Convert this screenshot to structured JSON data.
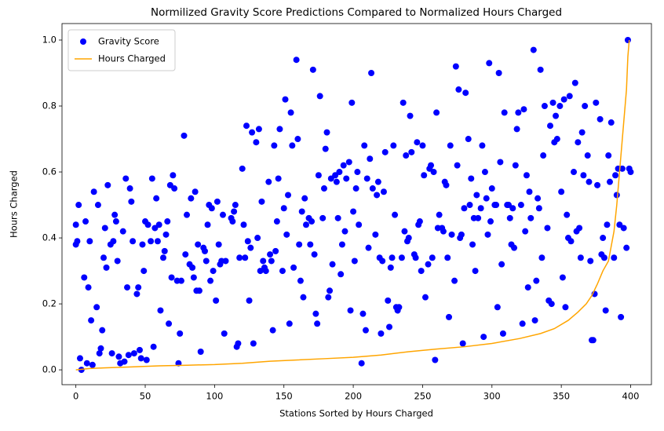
{
  "chart_data": {
    "type": "scatter",
    "title": "Normilized Gravity Score Predictions Compared to Normalized Hours Charged",
    "x_label": "Stations Sorted by Hours Charged",
    "y_label": "Hours Charged",
    "xlim": [
      -10,
      415
    ],
    "ylim": [
      -0.045,
      1.05
    ],
    "xticks": [
      0,
      50,
      100,
      150,
      200,
      250,
      300,
      350,
      400
    ],
    "yticks": [
      {
        "value": 0,
        "label": "0.0"
      },
      0.2,
      0.4,
      0.6,
      0.8,
      {
        "value": 1,
        "label": "1.0"
      }
    ],
    "legend": "upper left",
    "series": [
      {
        "name": "Gravity Score",
        "type": "scatter",
        "color": "#0000ff",
        "x": [
          0,
          0,
          1,
          2,
          3,
          4,
          6,
          7,
          8,
          9,
          10,
          11,
          12,
          13,
          15,
          16,
          17,
          18,
          19,
          20,
          21,
          22,
          23,
          25,
          26,
          27,
          28,
          29,
          30,
          31,
          32,
          34,
          35,
          36,
          37,
          38,
          39,
          40,
          41,
          42,
          44,
          45,
          46,
          47,
          48,
          49,
          50,
          51,
          52,
          54,
          55,
          56,
          57,
          58,
          59,
          60,
          61,
          63,
          64,
          65,
          66,
          67,
          68,
          69,
          70,
          71,
          73,
          74,
          75,
          76,
          78,
          79,
          80,
          82,
          83,
          84,
          85,
          86,
          87,
          88,
          89,
          90,
          92,
          93,
          94,
          95,
          96,
          97,
          98,
          99,
          101,
          102,
          103,
          104,
          105,
          106,
          107,
          108,
          112,
          113,
          114,
          115,
          116,
          117,
          118,
          120,
          121,
          122,
          123,
          124,
          125,
          126,
          127,
          128,
          130,
          131,
          132,
          133,
          134,
          135,
          136,
          137,
          139,
          140,
          141,
          142,
          143,
          144,
          145,
          146,
          147,
          149,
          150,
          151,
          152,
          153,
          154,
          155,
          156,
          157,
          159,
          160,
          161,
          162,
          163,
          164,
          165,
          166,
          168,
          169,
          170,
          171,
          172,
          173,
          174,
          175,
          176,
          178,
          179,
          180,
          181,
          182,
          183,
          184,
          185,
          187,
          188,
          189,
          190,
          191,
          192,
          193,
          194,
          195,
          197,
          198,
          199,
          200,
          201,
          202,
          203,
          204,
          206,
          207,
          208,
          209,
          210,
          211,
          212,
          213,
          214,
          216,
          217,
          218,
          219,
          220,
          221,
          222,
          223,
          225,
          226,
          227,
          228,
          229,
          230,
          231,
          232,
          233,
          235,
          236,
          237,
          238,
          239,
          240,
          241,
          242,
          244,
          245,
          246,
          247,
          248,
          249,
          250,
          251,
          252,
          254,
          255,
          256,
          257,
          258,
          259,
          260,
          261,
          262,
          264,
          265,
          266,
          267,
          268,
          269,
          270,
          271,
          273,
          274,
          275,
          276,
          277,
          278,
          279,
          280,
          281,
          283,
          284,
          285,
          286,
          287,
          288,
          289,
          290,
          292,
          293,
          294,
          295,
          296,
          297,
          298,
          299,
          300,
          302,
          303,
          304,
          305,
          306,
          307,
          308,
          309,
          311,
          312,
          313,
          314,
          315,
          316,
          317,
          318,
          319,
          321,
          322,
          323,
          324,
          325,
          326,
          327,
          328,
          330,
          331,
          332,
          333,
          334,
          335,
          336,
          337,
          338,
          340,
          341,
          342,
          343,
          344,
          345,
          346,
          347,
          349,
          350,
          351,
          352,
          353,
          354,
          355,
          356,
          357,
          359,
          360,
          361,
          362,
          363,
          364,
          365,
          366,
          367,
          369,
          370,
          371,
          372,
          373,
          374,
          375,
          376,
          378,
          379,
          380,
          381,
          382,
          383,
          384,
          385,
          386,
          388,
          389,
          390,
          391,
          392,
          393,
          394,
          395,
          397,
          398,
          399,
          400
        ],
        "values": [
          0.44,
          0.38,
          0.39,
          0.5,
          0.035,
          0.0,
          0.28,
          0.45,
          0.02,
          0.25,
          0.39,
          0.15,
          0.015,
          0.54,
          0.19,
          0.5,
          0.05,
          0.065,
          0.12,
          0.34,
          0.43,
          0.31,
          0.56,
          0.38,
          0.05,
          0.39,
          0.47,
          0.45,
          0.33,
          0.04,
          0.02,
          0.42,
          0.025,
          0.58,
          0.25,
          0.045,
          0.55,
          0.51,
          0.39,
          0.05,
          0.23,
          0.25,
          0.06,
          0.035,
          0.38,
          0.3,
          0.45,
          0.03,
          0.44,
          0.39,
          0.58,
          0.07,
          0.43,
          0.52,
          0.39,
          0.44,
          0.18,
          0.34,
          0.36,
          0.41,
          0.45,
          0.14,
          0.56,
          0.28,
          0.59,
          0.55,
          0.27,
          0.02,
          0.11,
          0.27,
          0.71,
          0.35,
          0.47,
          0.32,
          0.52,
          0.31,
          0.28,
          0.54,
          0.24,
          0.38,
          0.24,
          0.055,
          0.37,
          0.36,
          0.33,
          0.44,
          0.5,
          0.27,
          0.49,
          0.3,
          0.21,
          0.51,
          0.38,
          0.32,
          0.33,
          0.47,
          0.11,
          0.33,
          0.46,
          0.45,
          0.48,
          0.5,
          0.07,
          0.08,
          0.34,
          0.61,
          0.44,
          0.34,
          0.74,
          0.39,
          0.21,
          0.37,
          0.72,
          0.08,
          0.69,
          0.4,
          0.73,
          0.3,
          0.51,
          0.33,
          0.31,
          0.3,
          0.57,
          0.35,
          0.33,
          0.12,
          0.68,
          0.36,
          0.45,
          0.58,
          0.73,
          0.3,
          0.49,
          0.82,
          0.41,
          0.53,
          0.14,
          0.78,
          0.68,
          0.31,
          0.94,
          0.7,
          0.38,
          0.27,
          0.48,
          0.22,
          0.52,
          0.44,
          0.46,
          0.38,
          0.45,
          0.91,
          0.35,
          0.17,
          0.14,
          0.59,
          0.83,
          0.46,
          0.55,
          0.67,
          0.72,
          0.22,
          0.24,
          0.58,
          0.32,
          0.59,
          0.57,
          0.46,
          0.6,
          0.29,
          0.38,
          0.62,
          0.42,
          0.58,
          0.63,
          0.18,
          0.81,
          0.48,
          0.33,
          0.55,
          0.6,
          0.44,
          0.02,
          0.17,
          0.68,
          0.12,
          0.58,
          0.37,
          0.64,
          0.9,
          0.55,
          0.41,
          0.53,
          0.57,
          0.34,
          0.11,
          0.33,
          0.54,
          0.66,
          0.21,
          0.13,
          0.31,
          0.34,
          0.68,
          0.47,
          0.19,
          0.18,
          0.19,
          0.34,
          0.81,
          0.42,
          0.65,
          0.39,
          0.4,
          0.77,
          0.66,
          0.35,
          0.34,
          0.69,
          0.44,
          0.45,
          0.3,
          0.68,
          0.59,
          0.22,
          0.32,
          0.61,
          0.62,
          0.34,
          0.6,
          0.03,
          0.78,
          0.43,
          0.47,
          0.43,
          0.42,
          0.57,
          0.56,
          0.34,
          0.16,
          0.68,
          0.41,
          0.27,
          0.92,
          0.62,
          0.85,
          0.4,
          0.41,
          0.08,
          0.49,
          0.84,
          0.7,
          0.5,
          0.58,
          0.38,
          0.46,
          0.3,
          0.53,
          0.46,
          0.49,
          0.68,
          0.1,
          0.6,
          0.52,
          0.41,
          0.93,
          0.45,
          0.55,
          0.5,
          0.5,
          0.19,
          0.9,
          0.63,
          0.32,
          0.11,
          0.78,
          0.5,
          0.5,
          0.46,
          0.38,
          0.49,
          0.37,
          0.62,
          0.73,
          0.78,
          0.5,
          0.14,
          0.79,
          0.42,
          0.59,
          0.25,
          0.54,
          0.46,
          0.97,
          0.15,
          0.27,
          0.52,
          0.49,
          0.91,
          0.34,
          0.65,
          0.8,
          0.43,
          0.21,
          0.74,
          0.2,
          0.81,
          0.69,
          0.77,
          0.7,
          0.8,
          0.54,
          0.28,
          0.82,
          0.19,
          0.47,
          0.4,
          0.83,
          0.39,
          0.6,
          0.87,
          0.42,
          0.69,
          0.43,
          0.34,
          0.72,
          0.59,
          0.8,
          0.65,
          0.57,
          0.33,
          0.09,
          0.09,
          0.23,
          0.81,
          0.56,
          0.76,
          0.35,
          0.4,
          0.34,
          0.18,
          0.44,
          0.65,
          0.57,
          0.75,
          0.34,
          0.59,
          0.53,
          0.61,
          0.44,
          0.16,
          0.61,
          0.43,
          0.37,
          1.0,
          0.61,
          0.6
        ]
      },
      {
        "name": "Hours Charged",
        "type": "line",
        "color": "#ffa500",
        "x": [
          0,
          10,
          20,
          40,
          60,
          80,
          100,
          120,
          140,
          160,
          180,
          200,
          220,
          240,
          260,
          280,
          300,
          320,
          335,
          345,
          355,
          362,
          368,
          372,
          376,
          380,
          384,
          388,
          390,
          392,
          394,
          396,
          397,
          398,
          399
        ],
        "values": [
          0,
          0.004,
          0.006,
          0.009,
          0.012,
          0.014,
          0.016,
          0.02,
          0.026,
          0.03,
          0.034,
          0.038,
          0.045,
          0.055,
          0.063,
          0.07,
          0.08,
          0.095,
          0.11,
          0.125,
          0.15,
          0.175,
          0.2,
          0.225,
          0.26,
          0.3,
          0.33,
          0.42,
          0.5,
          0.6,
          0.7,
          0.8,
          0.85,
          0.95,
          1.0
        ]
      }
    ]
  }
}
